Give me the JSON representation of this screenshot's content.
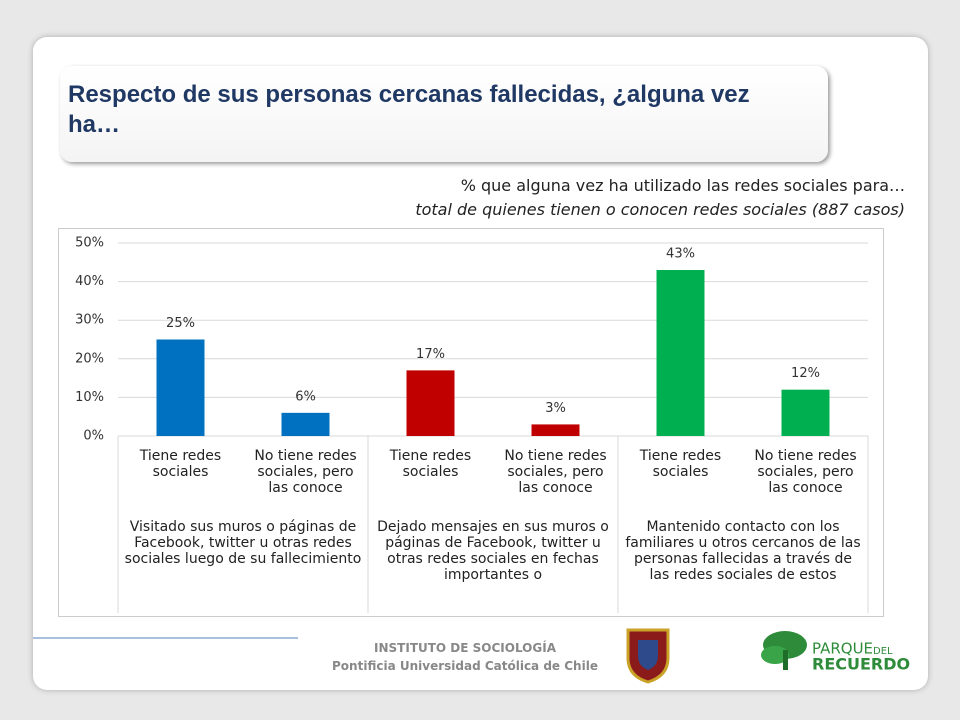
{
  "chart_data": {
    "type": "bar",
    "title": "Respecto de sus personas cercanas fallecidas, ¿alguna vez ha…",
    "subtitle": "% que alguna vez ha utilizado las redes sociales para…",
    "subtitle2": "total de quienes tienen o conocen redes sociales (887 casos)",
    "categories": [
      "Tiene redes sociales",
      "No tiene redes sociales, pero las conoce",
      "Tiene redes sociales",
      "No tiene redes sociales, pero las conoce",
      "Tiene redes sociales",
      "No tiene redes sociales, pero las conoce"
    ],
    "values": [
      25,
      6,
      17,
      3,
      43,
      12
    ],
    "value_labels": [
      "25%",
      "6%",
      "17%",
      "3%",
      "43%",
      "12%"
    ],
    "groups": [
      {
        "label": "Visitado sus muros o páginas de Facebook, twitter u otras redes sociales luego de su fallecimiento",
        "color": "#0070c0"
      },
      {
        "label": "Dejado mensajes en sus muros o páginas de Facebook, twitter u otras redes sociales en fechas importantes o",
        "color": "#c00000"
      },
      {
        "label": "Mantenido contacto con los familiares u otros cercanos de las personas fallecidas a través de las redes sociales de estos",
        "color": "#00b050"
      }
    ],
    "ylim": [
      0,
      50
    ],
    "yticks": [
      {
        "value": 0,
        "label": "0%"
      },
      {
        "value": 10,
        "label": "10%"
      },
      {
        "value": 20,
        "label": "20%"
      },
      {
        "value": 30,
        "label": "30%"
      },
      {
        "value": 40,
        "label": "40%"
      },
      {
        "value": 50,
        "label": "50%"
      }
    ],
    "grid": true
  },
  "footer": {
    "institute": "INSTITUTO DE SOCIOLOGÍA",
    "university": "Pontificia Universidad Católica de Chile",
    "logo_word1": "PARQUE",
    "logo_word2": "DEL",
    "logo_word3": "RECUERDO"
  }
}
